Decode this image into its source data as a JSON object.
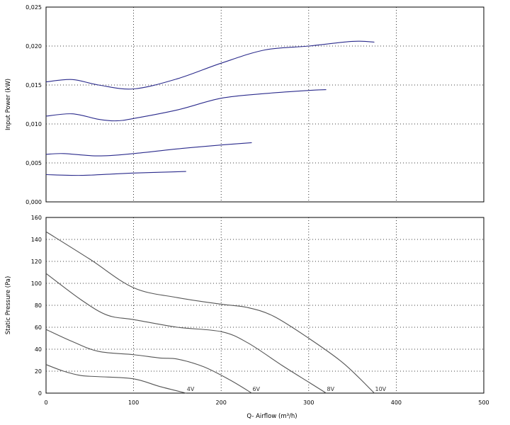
{
  "chart_data": [
    {
      "type": "line",
      "ylabel": "Input Power (kW)",
      "xlabel": "",
      "xlim": [
        0,
        500
      ],
      "ylim": [
        0,
        0.025
      ],
      "x_ticks": [
        0,
        100,
        200,
        300,
        400,
        500
      ],
      "y_ticks": [
        0,
        0.005,
        0.01,
        0.015,
        0.02,
        0.025
      ],
      "y_tick_labels": [
        "0,000",
        "0,005",
        "0,010",
        "0,015",
        "0,020",
        "0,025"
      ],
      "grid": true,
      "line_color": "#2b2b8c",
      "series": [
        {
          "x": [
            0,
            30,
            60,
            100,
            150,
            200,
            250,
            300,
            350,
            375
          ],
          "y": [
            0.0154,
            0.0157,
            0.015,
            0.0145,
            0.0158,
            0.0178,
            0.0195,
            0.02,
            0.0206,
            0.0205
          ]
        },
        {
          "x": [
            0,
            30,
            60,
            80,
            100,
            150,
            200,
            250,
            300,
            320
          ],
          "y": [
            0.011,
            0.0113,
            0.0106,
            0.0104,
            0.0107,
            0.0118,
            0.0133,
            0.0139,
            0.0143,
            0.0144
          ]
        },
        {
          "x": [
            0,
            20,
            60,
            100,
            150,
            200,
            235
          ],
          "y": [
            0.0061,
            0.0062,
            0.0059,
            0.0062,
            0.0068,
            0.0073,
            0.0076
          ]
        },
        {
          "x": [
            0,
            40,
            80,
            100,
            130,
            160
          ],
          "y": [
            0.0035,
            0.0034,
            0.0036,
            0.0037,
            0.0038,
            0.0039
          ]
        }
      ]
    },
    {
      "type": "line",
      "ylabel": "Static Pressure (Pa)",
      "xlabel": "Q- Airflow (m³/h)",
      "xlim": [
        0,
        500
      ],
      "ylim": [
        0,
        160
      ],
      "x_ticks": [
        0,
        100,
        200,
        300,
        400,
        500
      ],
      "y_ticks": [
        0,
        20,
        40,
        60,
        80,
        100,
        120,
        140,
        160
      ],
      "grid": true,
      "line_color": "#555555",
      "series": [
        {
          "name": "10V",
          "x": [
            0,
            50,
            100,
            150,
            200,
            230,
            260,
            300,
            340,
            375
          ],
          "y": [
            147,
            122,
            96,
            87,
            81,
            78,
            70,
            50,
            27,
            0
          ]
        },
        {
          "name": "8V",
          "x": [
            0,
            40,
            70,
            100,
            150,
            200,
            230,
            270,
            300,
            320
          ],
          "y": [
            109,
            85,
            71,
            67,
            60,
            56,
            46,
            25,
            10,
            0
          ]
        },
        {
          "name": "6V",
          "x": [
            0,
            30,
            60,
            100,
            130,
            150,
            180,
            210,
            235
          ],
          "y": [
            58,
            47,
            38,
            35,
            32,
            31,
            24,
            12,
            0
          ]
        },
        {
          "name": "4V",
          "x": [
            0,
            20,
            40,
            60,
            100,
            130,
            160
          ],
          "y": [
            26,
            20,
            16,
            15,
            13,
            6,
            0
          ]
        }
      ]
    }
  ]
}
